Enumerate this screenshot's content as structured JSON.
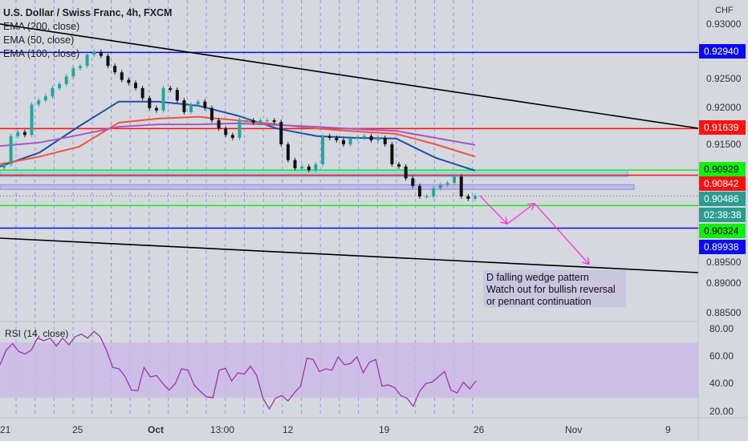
{
  "header": {
    "title": "U.S. Dollar / Swiss Franc, 4h, FXCM",
    "indicators": [
      "EMA (200, close)",
      "EMA (50, close)",
      "EMA (100, close)"
    ]
  },
  "price_axis": {
    "currency": "CHF",
    "ticks": [
      "0.93000",
      "0.92500",
      "0.92000",
      "0.91500",
      "0.89500",
      "0.89000",
      "0.88500"
    ]
  },
  "annotation": {
    "lines": [
      "D falling wedge pattern",
      "Watch out for bullish reversal",
      "or  pennant continuation"
    ]
  },
  "rsi": {
    "label": "RSI (14, close)",
    "ticks": [
      "80.00",
      "60.00",
      "40.00",
      "20.00"
    ]
  },
  "time_axis": {
    "ticks": [
      "21",
      "25",
      "Oct",
      "13:00",
      "12",
      "19",
      "26",
      "Nov",
      "9"
    ]
  },
  "colors": {
    "background": "#d5d8df",
    "bull": "#26a69a",
    "bear": "#111111",
    "ema50": "#1f4fa8",
    "ema100": "#f0533a",
    "ema200": "#a659c2",
    "level_blue": "#0a0af0",
    "level_red": "#ff1010",
    "level_green": "#10f010",
    "current": "#2a9d8f",
    "arrows": "#ff2ee0",
    "rsi_line": "#9c27b0",
    "rsi_band": "#c9b8e6"
  },
  "chart_data": [
    {
      "type": "candlestick",
      "title": "U.S. Dollar / Swiss Franc, 4h, FXCM",
      "x_range": [
        "Sep 21",
        "Nov 11"
      ],
      "ylim": [
        0.8825,
        0.935
      ],
      "close": [
        0.9103,
        0.9151,
        0.9158,
        0.9153,
        0.9205,
        0.9212,
        0.9219,
        0.9233,
        0.924,
        0.9253,
        0.9267,
        0.9271,
        0.929,
        0.9295,
        0.9288,
        0.9271,
        0.926,
        0.9247,
        0.9242,
        0.9233,
        0.9216,
        0.9199,
        0.9195,
        0.9233,
        0.923,
        0.9212,
        0.9192,
        0.9205,
        0.921,
        0.9199,
        0.9178,
        0.9164,
        0.9153,
        0.9148,
        0.9178,
        0.9178,
        0.9174,
        0.9178,
        0.9178,
        0.9175,
        0.9137,
        0.911,
        0.9096,
        0.9099,
        0.9093,
        0.9103,
        0.9151,
        0.9148,
        0.9144,
        0.9137,
        0.9147,
        0.9148,
        0.9151,
        0.9144,
        0.9148,
        0.9137,
        0.9103,
        0.9099,
        0.9079,
        0.9066,
        0.9048,
        0.9048,
        0.9062,
        0.9068,
        0.9071,
        0.9082,
        0.9048,
        0.9044,
        0.9049
      ],
      "ema": [
        {
          "name": "EMA (50, close)",
          "color": "#1f4fa8",
          "values": [
            0.9099,
            0.9123,
            0.9168,
            0.921,
            0.921,
            0.9203,
            0.9186,
            0.9164,
            0.9151,
            0.9148,
            0.9147,
            0.9114,
            0.9092
          ]
        },
        {
          "name": "EMA (100, close)",
          "color": "#f0533a",
          "values": [
            0.9103,
            0.9116,
            0.9133,
            0.9174,
            0.9181,
            0.9184,
            0.9178,
            0.9171,
            0.9164,
            0.9159,
            0.9155,
            0.9137,
            0.9116
          ]
        },
        {
          "name": "EMA (200, close)",
          "color": "#a659c2",
          "values": [
            0.9134,
            0.914,
            0.9153,
            0.9167,
            0.9171,
            0.9171,
            0.9173,
            0.917,
            0.9167,
            0.9163,
            0.916,
            0.9148,
            0.9136
          ]
        }
      ],
      "levels": [
        {
          "price": 0.9294,
          "label": "0.92940",
          "color": "#0a0af0",
          "text": "#ffffff"
        },
        {
          "price": 0.91639,
          "label": "0.91639",
          "color": "#ff1010",
          "text": "#ffffff"
        },
        {
          "price": 0.90929,
          "label": "0.90929",
          "color": "#10f010",
          "text": "#000000"
        },
        {
          "price": 0.90842,
          "label": "0.90842",
          "color": "#ff1010",
          "text": "#ffffff"
        },
        {
          "price": 0.90324,
          "label": "0.90324",
          "color": "#10f010",
          "text": "#000000"
        },
        {
          "price": 0.89938,
          "label": "0.89938",
          "color": "#0a0af0",
          "text": "#ffffff"
        }
      ],
      "current_price": {
        "price": 0.90486,
        "label": "0.90486",
        "countdown": "02:38:38"
      },
      "zones": [
        {
          "from": 0.90929,
          "to": 0.9082,
          "color": "#8fd3e8"
        },
        {
          "from": 0.9068,
          "to": 0.906,
          "color": "#b9b2e8"
        }
      ],
      "trendlines": [
        {
          "start": [
            "Sep 21",
            0.93425
          ],
          "end": [
            "Nov 11",
            0.91644
          ]
        },
        {
          "start": [
            "Sep 21",
            0.89767
          ],
          "end": [
            "Nov 11",
            0.89178
          ]
        }
      ],
      "arrow_path": [
        [
          "Oct 26",
          0.9049
        ],
        [
          "Oct 28",
          0.9001
        ],
        [
          "Oct 30",
          0.9036
        ],
        [
          "Nov 3",
          0.8932
        ]
      ]
    },
    {
      "type": "line",
      "title": "RSI (14, close)",
      "ylim": [
        15,
        85
      ],
      "band": [
        30,
        70
      ],
      "values": [
        53.8,
        64.5,
        69.3,
        63.5,
        61.6,
        64.5,
        73.2,
        71.3,
        73.2,
        67.4,
        73.2,
        68.4,
        74.2,
        76.1,
        73.2,
        78.1,
        74.2,
        64.5,
        51.9,
        50.9,
        45.1,
        35.4,
        35.0,
        51.9,
        45.1,
        46.0,
        40.2,
        35.4,
        40.2,
        50.9,
        49.9,
        39.2,
        34.4,
        30.5,
        29.9,
        49.9,
        51.3,
        42.1,
        48.0,
        47.0,
        52.8,
        46.0,
        29.5,
        21.8,
        29.5,
        31.5,
        27.6,
        33.4,
        38.3,
        58.6,
        57.7,
        48.9,
        50.9,
        49.9,
        59.6,
        53.8,
        54.8,
        59.6,
        48.0,
        55.7,
        57.7,
        38.3,
        39.2,
        37.3,
        31.5,
        29.5,
        23.7,
        34.4,
        40.2,
        41.2,
        45.1,
        48.9,
        35.4,
        33.4,
        41.2,
        36.3,
        42.1
      ]
    }
  ]
}
